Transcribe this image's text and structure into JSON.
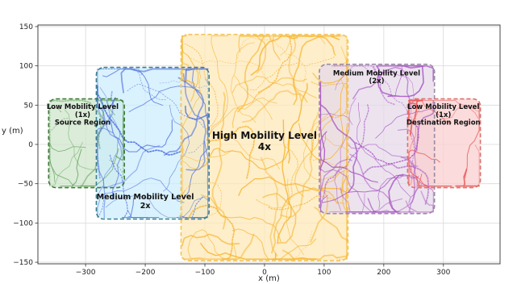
{
  "chart_data": {
    "type": "line",
    "xlabel": "x (m)",
    "ylabel": "y (m)",
    "xlim": [
      -380,
      395
    ],
    "ylim": [
      -152,
      152
    ],
    "xticks": [
      -300,
      -200,
      -100,
      0,
      100,
      200,
      300
    ],
    "yticks": [
      -150,
      -100,
      -50,
      0,
      50,
      100,
      150
    ],
    "grid": true,
    "regions": [
      {
        "id": "src",
        "lines": [
          "Low Mobility Level",
          "(1x)",
          "Source Region"
        ],
        "x": [
          -362,
          -235
        ],
        "y": [
          -55,
          58
        ],
        "fill": "#cfe6cc",
        "stroke": "#3f7a3a",
        "track_color": "#5fa355",
        "label_at": [
          -305,
          45
        ],
        "font_size": 8.5
      },
      {
        "id": "med1",
        "lines": [
          "Medium Mobility Level",
          "2x"
        ],
        "x": [
          -282,
          -93
        ],
        "y": [
          -95,
          98
        ],
        "fill": "#cdeefc",
        "stroke": "#3d7f8c",
        "track_color": "#4f6fe0",
        "label_at": [
          -200,
          -70
        ],
        "font_size": 9.5
      },
      {
        "id": "high",
        "lines": [
          "High Mobility Level",
          "4x"
        ],
        "x": [
          -140,
          140
        ],
        "y": [
          -148,
          140
        ],
        "fill": "#fde8b8",
        "stroke": "#f2c45a",
        "track_color": "#f6b52e",
        "label_at": [
          0,
          7
        ],
        "font_size": 12
      },
      {
        "id": "med2",
        "lines": [
          "Medium Mobility Level",
          "(2x)"
        ],
        "x": [
          92,
          285
        ],
        "y": [
          -88,
          102
        ],
        "fill": "#e6d9ea",
        "stroke": "#9a8aa6",
        "track_color": "#a753c2",
        "label_at": [
          188,
          88
        ],
        "font_size": 8.5
      },
      {
        "id": "dst",
        "lines": [
          "Low Mobility Level",
          "(1x)",
          "Destination Region"
        ],
        "x": [
          240,
          362
        ],
        "y": [
          -55,
          58
        ],
        "fill": "#f9cfcf",
        "stroke": "#d9726f",
        "track_color": "#ea5a5a",
        "label_at": [
          300,
          45
        ],
        "font_size": 8.5
      }
    ]
  }
}
